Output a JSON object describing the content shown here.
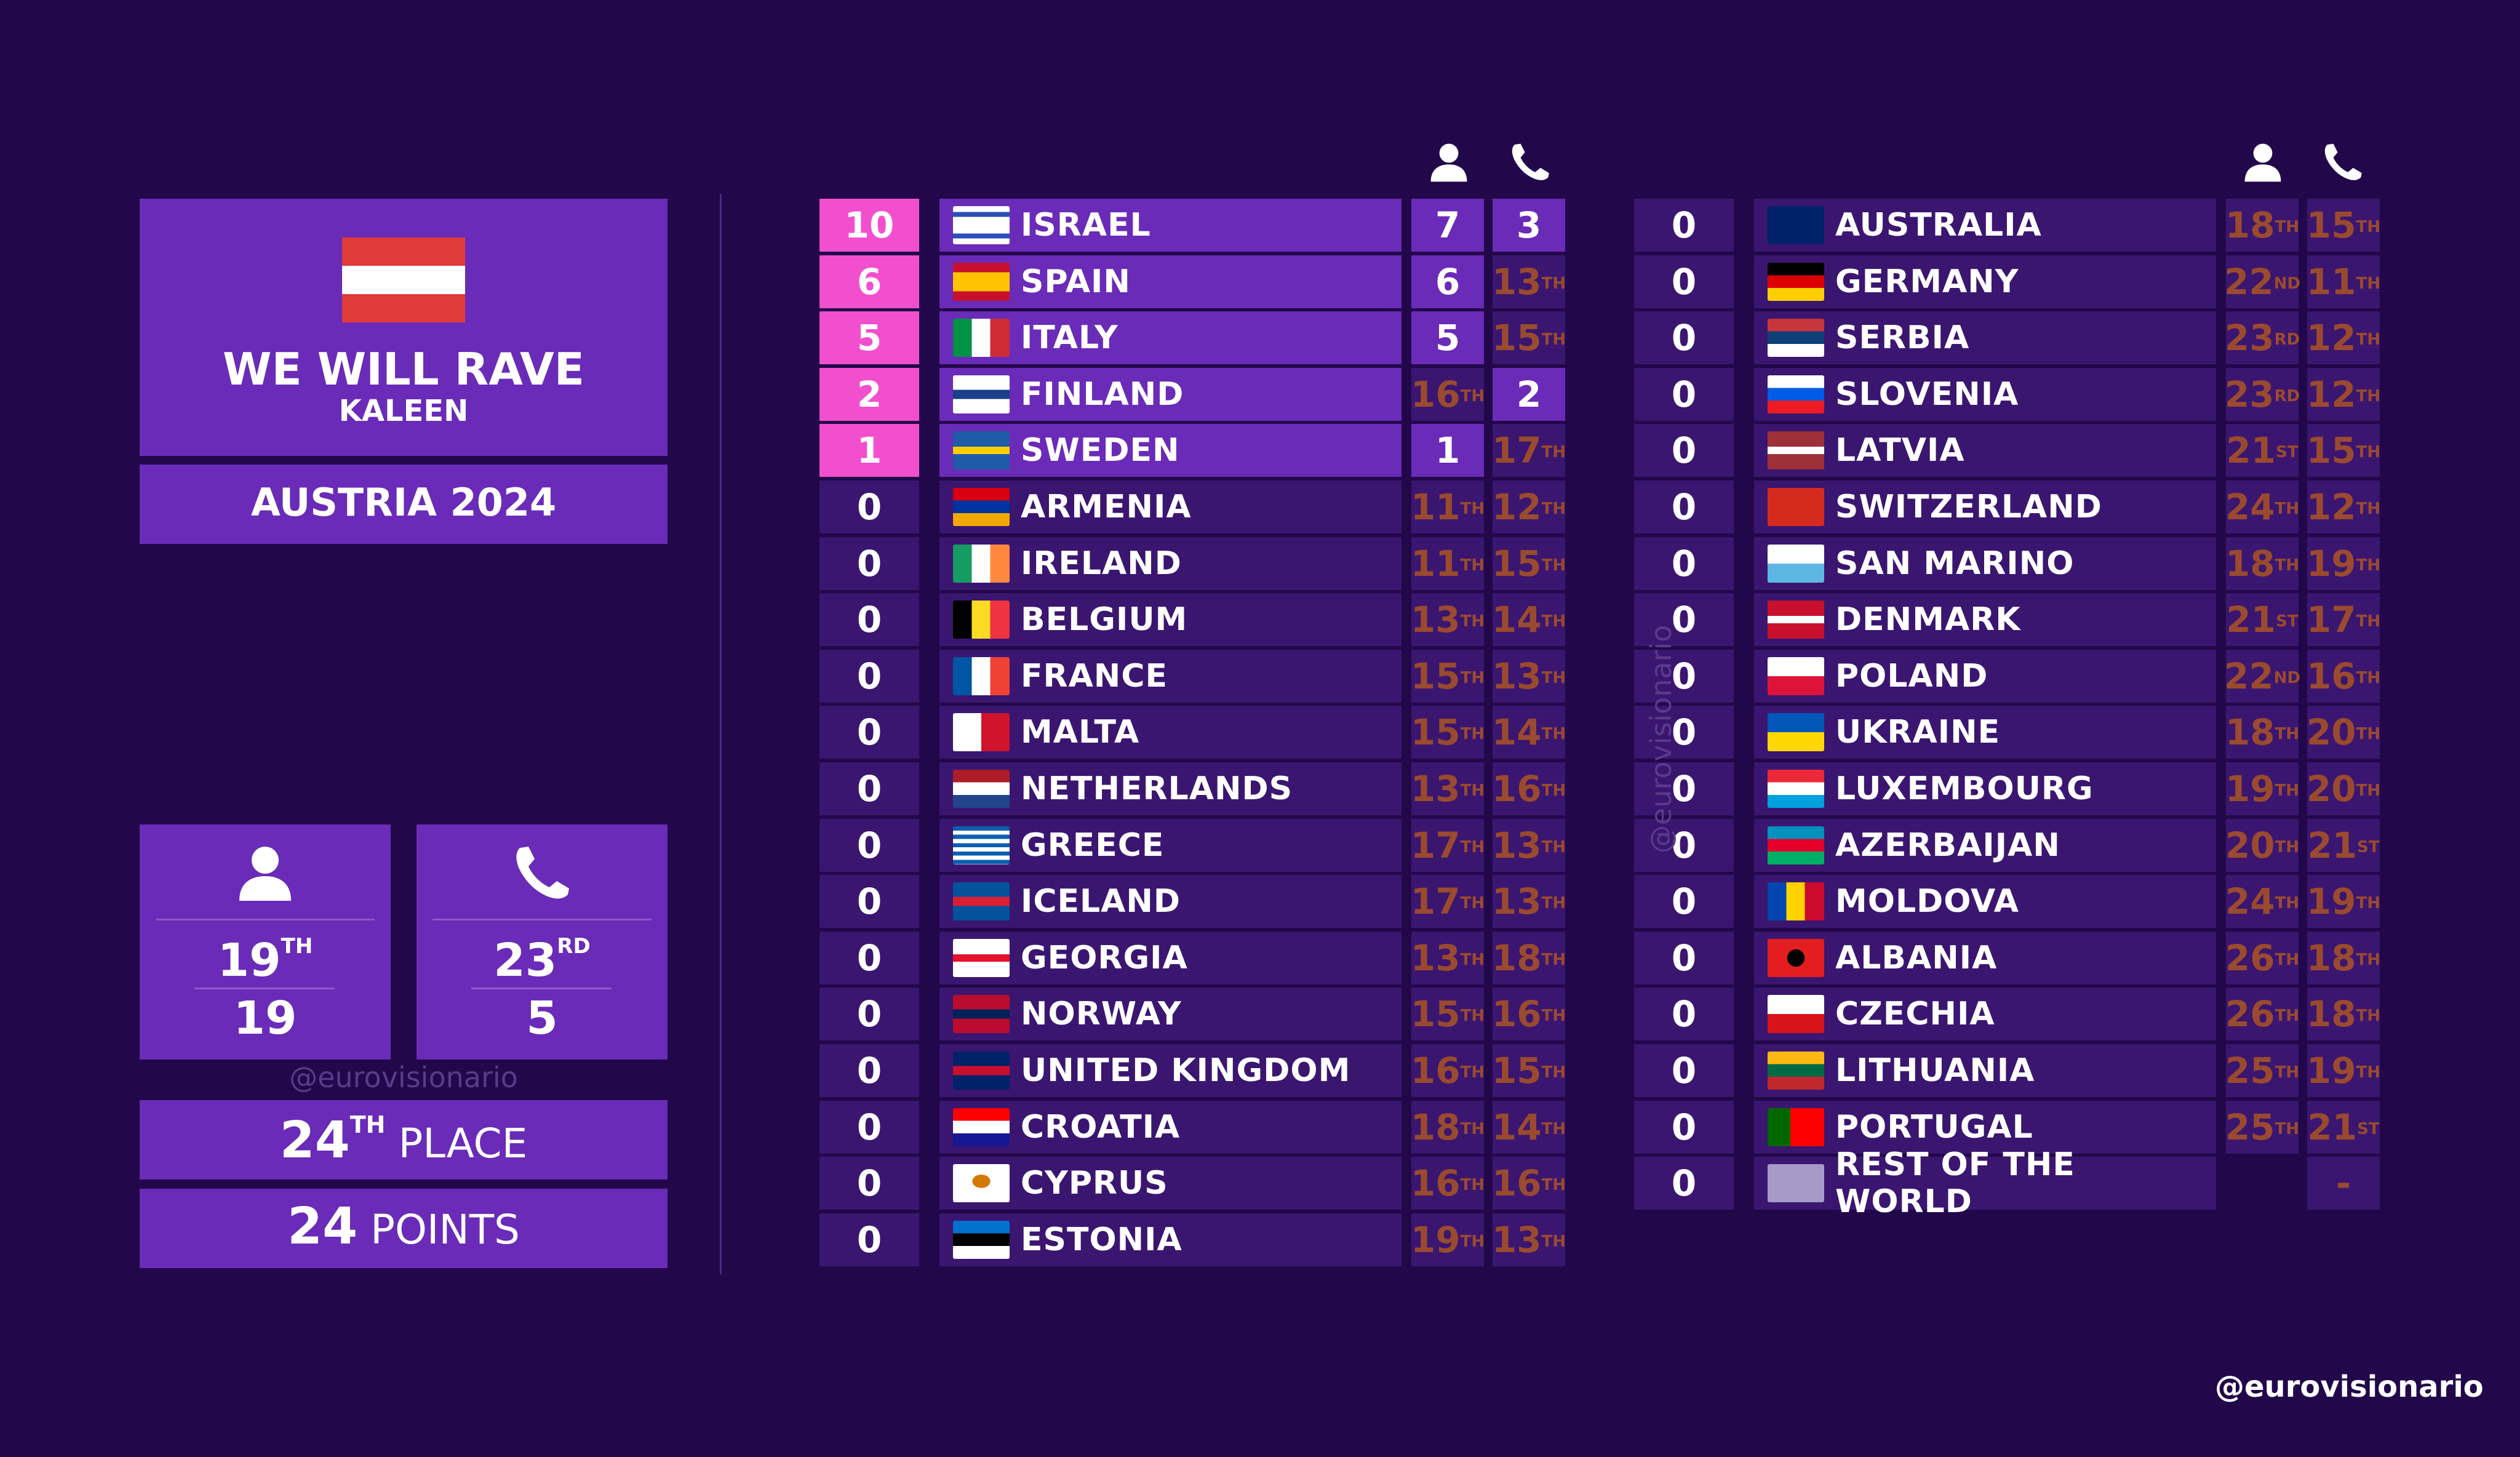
{
  "song": {
    "title": "WE WILL RAVE",
    "artist": "KALEEN",
    "country_year": "AUSTRIA 2024",
    "flag_colors": [
      "#e03a3a",
      "#ffffff",
      "#e03a3a"
    ]
  },
  "jury": {
    "icon": "person-icon",
    "rank": "19",
    "suffix": "TH",
    "points": "19"
  },
  "televote": {
    "icon": "phone-icon",
    "rank": "23",
    "suffix": "RD",
    "points": "5"
  },
  "place": {
    "num": "24",
    "suffix": "TH",
    "label": "PLACE"
  },
  "total": {
    "num": "24",
    "label": "POINTS"
  },
  "watermark": "@eurovisionario",
  "column_icons": {
    "jury": "person-icon",
    "televote": "phone-icon"
  },
  "left_table": [
    {
      "points": "10",
      "country": "ISRAEL",
      "jury": "7",
      "jury_sfx": "",
      "tele": "3",
      "tele_sfx": "",
      "hi": true,
      "jhi": true,
      "thi": true,
      "flag": "linear-gradient(#fff 0 15%,#2b4fb8 15% 28%,#fff 28% 72%,#2b4fb8 72% 85%,#fff 85%)"
    },
    {
      "points": "6",
      "country": "SPAIN",
      "jury": "6",
      "jury_sfx": "",
      "tele": "13",
      "tele_sfx": "TH",
      "hi": true,
      "jhi": true,
      "thi": false,
      "flag": "linear-gradient(#c8102e 0 25%,#ffc400 25% 75%,#c8102e 75%)"
    },
    {
      "points": "5",
      "country": "ITALY",
      "jury": "5",
      "jury_sfx": "",
      "tele": "15",
      "tele_sfx": "TH",
      "hi": true,
      "jhi": true,
      "thi": false,
      "flag": "linear-gradient(90deg,#009246 0 33%,#fff 33% 66%,#ce2b37 66%)"
    },
    {
      "points": "2",
      "country": "FINLAND",
      "jury": "16",
      "jury_sfx": "TH",
      "tele": "2",
      "tele_sfx": "",
      "hi": true,
      "jhi": false,
      "thi": true,
      "flag": "linear-gradient(#fff 0 38%,#1a3f8c 38% 62%,#fff 62%)"
    },
    {
      "points": "1",
      "country": "SWEDEN",
      "jury": "1",
      "jury_sfx": "",
      "tele": "17",
      "tele_sfx": "TH",
      "hi": true,
      "jhi": true,
      "thi": false,
      "flag": "linear-gradient(#1e5ca8 0 40%,#ffcd00 40% 60%,#1e5ca8 60%)"
    },
    {
      "points": "0",
      "country": "ARMENIA",
      "jury": "11",
      "jury_sfx": "TH",
      "tele": "12",
      "tele_sfx": "TH",
      "hi": false,
      "flag": "linear-gradient(#d90012 0 33%,#0033a0 33% 66%,#f2a800 66%)"
    },
    {
      "points": "0",
      "country": "IRELAND",
      "jury": "11",
      "jury_sfx": "TH",
      "tele": "15",
      "tele_sfx": "TH",
      "hi": false,
      "flag": "linear-gradient(90deg,#169b62 0 33%,#fff 33% 66%,#ff883e 66%)"
    },
    {
      "points": "0",
      "country": "BELGIUM",
      "jury": "13",
      "jury_sfx": "TH",
      "tele": "14",
      "tele_sfx": "TH",
      "hi": false,
      "flag": "linear-gradient(90deg,#000 0 33%,#fdda24 33% 66%,#ef3340 66%)"
    },
    {
      "points": "0",
      "country": "FRANCE",
      "jury": "15",
      "jury_sfx": "TH",
      "tele": "13",
      "tele_sfx": "TH",
      "hi": false,
      "flag": "linear-gradient(90deg,#0055a4 0 33%,#fff 33% 66%,#ef4135 66%)"
    },
    {
      "points": "0",
      "country": "MALTA",
      "jury": "15",
      "jury_sfx": "TH",
      "tele": "14",
      "tele_sfx": "TH",
      "hi": false,
      "flag": "linear-gradient(90deg,#fff 0 50%,#cf142b 50%)"
    },
    {
      "points": "0",
      "country": "NETHERLANDS",
      "jury": "13",
      "jury_sfx": "TH",
      "tele": "16",
      "tele_sfx": "TH",
      "hi": false,
      "flag": "linear-gradient(#ae1c28 0 33%,#fff 33% 66%,#21468b 66%)"
    },
    {
      "points": "0",
      "country": "GREECE",
      "jury": "17",
      "jury_sfx": "TH",
      "tele": "13",
      "tele_sfx": "TH",
      "hi": false,
      "flag": "repeating-linear-gradient(#0d5eaf 0 11%,#fff 11% 22%)"
    },
    {
      "points": "0",
      "country": "ICELAND",
      "jury": "17",
      "jury_sfx": "TH",
      "tele": "13",
      "tele_sfx": "TH",
      "hi": false,
      "flag": "linear-gradient(#02529c 0 38%,#dc1e35 38% 62%,#02529c 62%)"
    },
    {
      "points": "0",
      "country": "GEORGIA",
      "jury": "13",
      "jury_sfx": "TH",
      "tele": "18",
      "tele_sfx": "TH",
      "hi": false,
      "flag": "linear-gradient(#fff 0 40%,#e8112d 40% 60%,#fff 60%)"
    },
    {
      "points": "0",
      "country": "NORWAY",
      "jury": "15",
      "jury_sfx": "TH",
      "tele": "16",
      "tele_sfx": "TH",
      "hi": false,
      "flag": "linear-gradient(#ba0c2f 0 38%,#00205b 38% 62%,#ba0c2f 62%)"
    },
    {
      "points": "0",
      "country": "UNITED KINGDOM",
      "jury": "16",
      "jury_sfx": "TH",
      "tele": "15",
      "tele_sfx": "TH",
      "hi": false,
      "flag": "linear-gradient(#012169 0 38%,#c8102e 38% 62%,#012169 62%)"
    },
    {
      "points": "0",
      "country": "CROATIA",
      "jury": "18",
      "jury_sfx": "TH",
      "tele": "14",
      "tele_sfx": "TH",
      "hi": false,
      "flag": "linear-gradient(#ff0000 0 33%,#fff 33% 66%,#171796 66%)"
    },
    {
      "points": "0",
      "country": "CYPRUS",
      "jury": "16",
      "jury_sfx": "TH",
      "tele": "16",
      "tele_sfx": "TH",
      "hi": false,
      "flag": "radial-gradient(ellipse at 50% 45%,#d57800 0 22%,#fff 23%)"
    },
    {
      "points": "0",
      "country": "ESTONIA",
      "jury": "19",
      "jury_sfx": "TH",
      "tele": "13",
      "tele_sfx": "TH",
      "hi": false,
      "flag": "linear-gradient(#0072ce 0 33%,#000 33% 66%,#fff 66%)"
    }
  ],
  "right_table": [
    {
      "points": "0",
      "country": "AUSTRALIA",
      "jury": "18",
      "jury_sfx": "TH",
      "tele": "15",
      "tele_sfx": "TH",
      "flag": "linear-gradient(#012169,#012169)"
    },
    {
      "points": "0",
      "country": "GERMANY",
      "jury": "22",
      "jury_sfx": "ND",
      "tele": "11",
      "tele_sfx": "TH",
      "flag": "linear-gradient(#000 0 33%,#dd0000 33% 66%,#ffce00 66%)"
    },
    {
      "points": "0",
      "country": "SERBIA",
      "jury": "23",
      "jury_sfx": "RD",
      "tele": "12",
      "tele_sfx": "TH",
      "flag": "linear-gradient(#c6363c 0 33%,#0c4076 33% 66%,#fff 66%)"
    },
    {
      "points": "0",
      "country": "SLOVENIA",
      "jury": "23",
      "jury_sfx": "RD",
      "tele": "12",
      "tele_sfx": "TH",
      "flag": "linear-gradient(#fff 0 33%,#005ce5 33% 66%,#ed1c24 66%)"
    },
    {
      "points": "0",
      "country": "LATVIA",
      "jury": "21",
      "jury_sfx": "ST",
      "tele": "15",
      "tele_sfx": "TH",
      "flag": "linear-gradient(#9e3039 0 40%,#fff 40% 60%,#9e3039 60%)"
    },
    {
      "points": "0",
      "country": "SWITZERLAND",
      "jury": "24",
      "jury_sfx": "TH",
      "tele": "12",
      "tele_sfx": "TH",
      "flag": "linear-gradient(#d52b1e,#d52b1e)"
    },
    {
      "points": "0",
      "country": "SAN MARINO",
      "jury": "18",
      "jury_sfx": "TH",
      "tele": "19",
      "tele_sfx": "TH",
      "flag": "linear-gradient(#fff 0 50%,#5eb6e4 50%)"
    },
    {
      "points": "0",
      "country": "DENMARK",
      "jury": "21",
      "jury_sfx": "ST",
      "tele": "17",
      "tele_sfx": "TH",
      "flag": "linear-gradient(#c8102e 0 40%,#fff 40% 60%,#c8102e 60%)"
    },
    {
      "points": "0",
      "country": "POLAND",
      "jury": "22",
      "jury_sfx": "ND",
      "tele": "16",
      "tele_sfx": "TH",
      "flag": "linear-gradient(#fff 0 50%,#dc143c 50%)"
    },
    {
      "points": "0",
      "country": "UKRAINE",
      "jury": "18",
      "jury_sfx": "TH",
      "tele": "20",
      "tele_sfx": "TH",
      "flag": "linear-gradient(#0057b7 0 50%,#ffd700 50%)"
    },
    {
      "points": "0",
      "country": "LUXEMBOURG",
      "jury": "19",
      "jury_sfx": "TH",
      "tele": "20",
      "tele_sfx": "TH",
      "flag": "linear-gradient(#ed2939 0 33%,#fff 33% 66%,#00a1de 66%)"
    },
    {
      "points": "0",
      "country": "AZERBAIJAN",
      "jury": "20",
      "jury_sfx": "TH",
      "tele": "21",
      "tele_sfx": "ST",
      "flag": "linear-gradient(#0092bc 0 33%,#e4002b 33% 66%,#00af66 66%)"
    },
    {
      "points": "0",
      "country": "MOLDOVA",
      "jury": "24",
      "jury_sfx": "TH",
      "tele": "19",
      "tele_sfx": "TH",
      "flag": "linear-gradient(90deg,#0046ae 0 33%,#ffd200 33% 66%,#cc092f 66%)"
    },
    {
      "points": "0",
      "country": "ALBANIA",
      "jury": "26",
      "jury_sfx": "TH",
      "tele": "18",
      "tele_sfx": "TH",
      "flag": "radial-gradient(circle,#000 0 25%,#e41e20 26%)"
    },
    {
      "points": "0",
      "country": "CZECHIA",
      "jury": "26",
      "jury_sfx": "TH",
      "tele": "18",
      "tele_sfx": "TH",
      "flag": "linear-gradient(#fff 0 50%,#d7141a 50%)"
    },
    {
      "points": "0",
      "country": "LITHUANIA",
      "jury": "25",
      "jury_sfx": "TH",
      "tele": "19",
      "tele_sfx": "TH",
      "flag": "linear-gradient(#fdb913 0 33%,#006a44 33% 66%,#c1272d 66%)"
    },
    {
      "points": "0",
      "country": "PORTUGAL",
      "jury": "25",
      "jury_sfx": "TH",
      "tele": "21",
      "tele_sfx": "ST",
      "flag": "linear-gradient(90deg,#006600 0 40%,#ff0000 40%)"
    },
    {
      "points": "0",
      "country": "REST OF THE WORLD",
      "jury": "",
      "jury_sfx": "",
      "tele": "-",
      "tele_sfx": "",
      "flag": "linear-gradient(#a89ac8,#a89ac8)"
    }
  ]
}
